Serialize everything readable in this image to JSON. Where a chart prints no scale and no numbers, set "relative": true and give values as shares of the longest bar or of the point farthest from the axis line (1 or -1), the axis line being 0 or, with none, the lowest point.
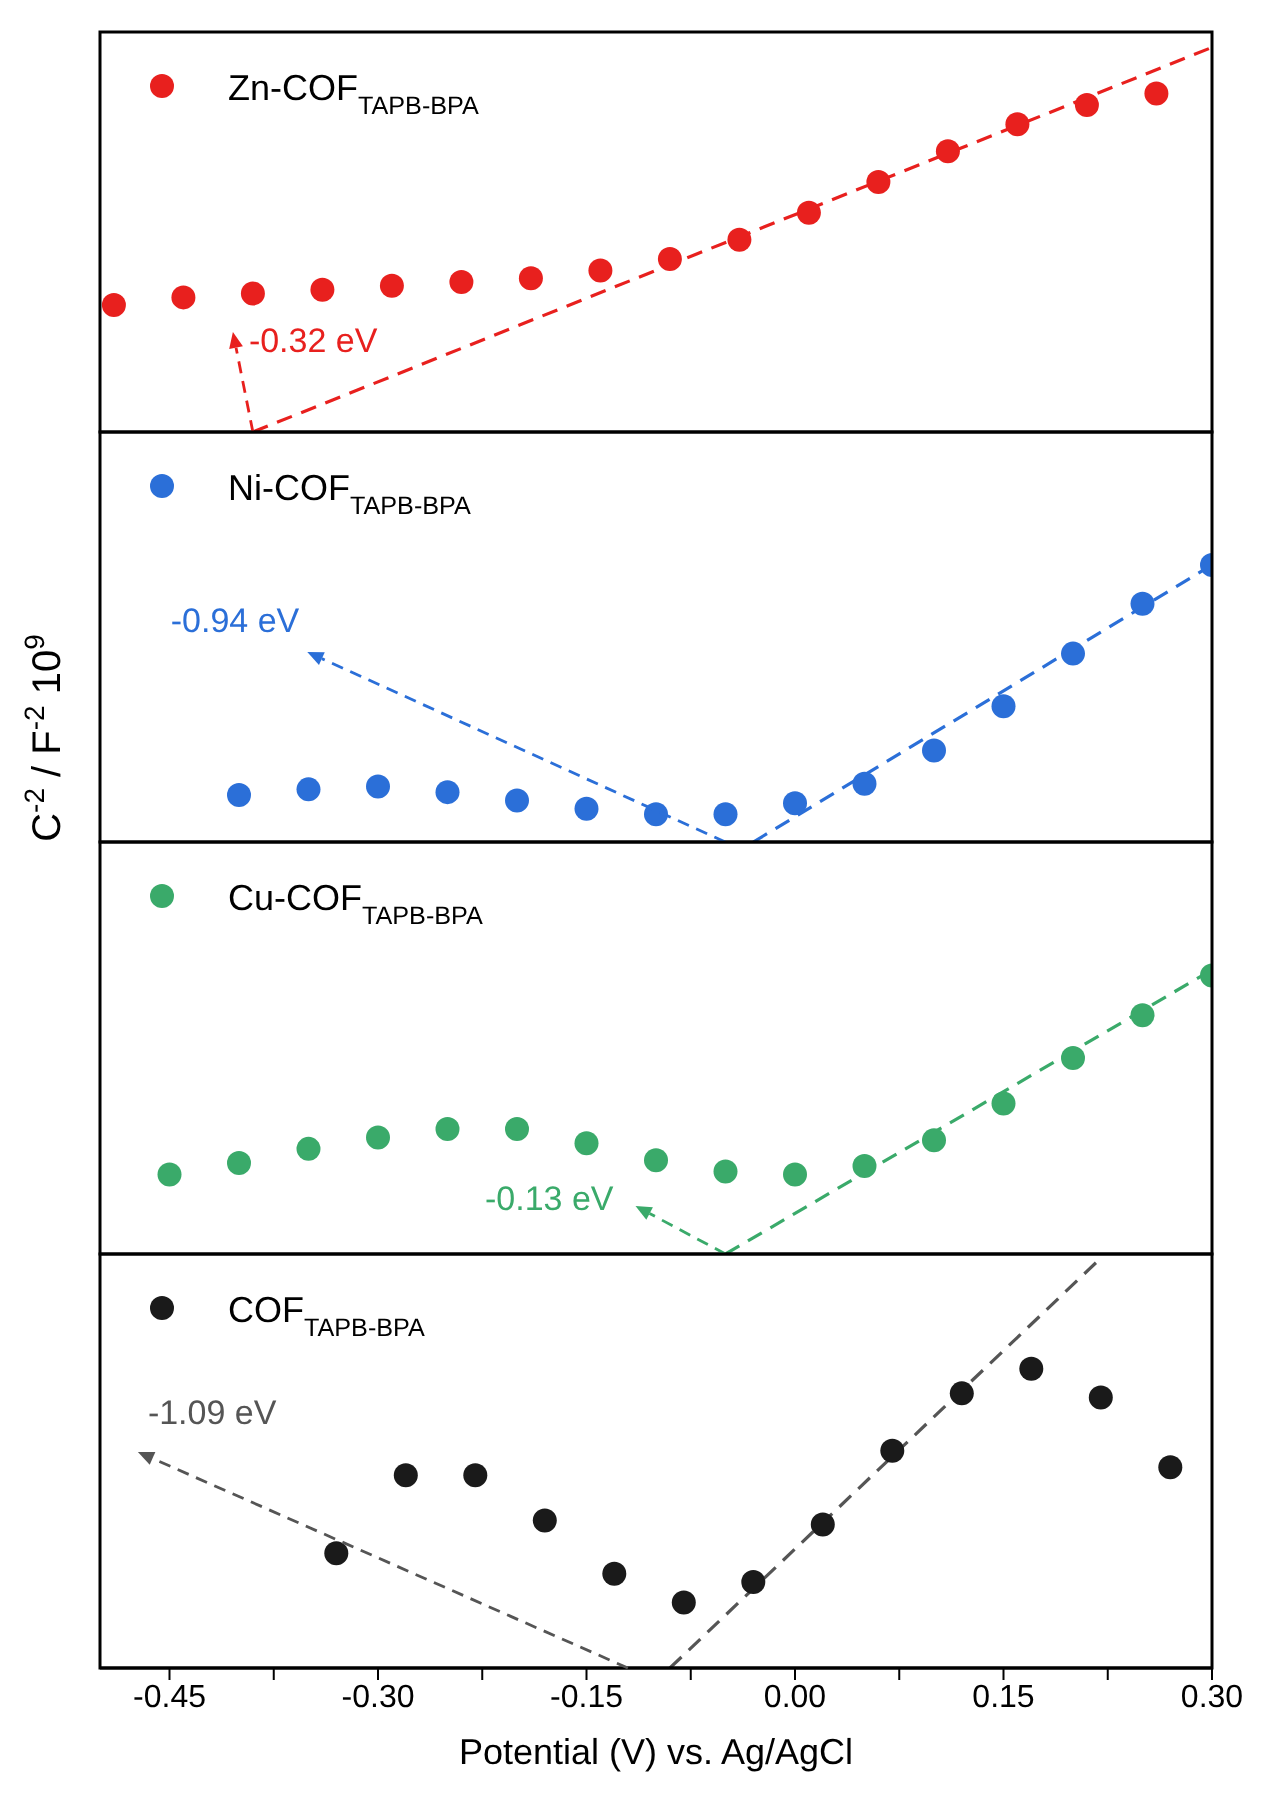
{
  "chart_data": [
    {
      "type": "scatter",
      "relative": true,
      "xlim": [
        -0.5,
        0.3
      ],
      "tick_labels": false,
      "legend": "top left",
      "marker": "circle",
      "annotations": [
        {
          "text": "-0.32 eV",
          "x": -0.39,
          "y": 0
        }
      ],
      "series": [
        {
          "name": "Zn-COF$_{TAPB-BPA}$",
          "color": "#e8201e",
          "x": [
            -0.49,
            -0.44,
            -0.39,
            -0.34,
            -0.29,
            -0.24,
            -0.19,
            -0.14,
            -0.09,
            -0.04,
            0.01,
            0.06,
            0.11,
            0.16,
            0.21,
            0.26
          ],
          "values": [
            0.33,
            0.35,
            0.36,
            0.37,
            0.38,
            0.39,
            0.4,
            0.42,
            0.45,
            0.5,
            0.57,
            0.65,
            0.73,
            0.8,
            0.85,
            0.88
          ]
        },
        {
          "type": "line",
          "marker": "none",
          "color": "#e8201e",
          "line_style": "dashed",
          "x": [
            -0.39,
            0.3
          ],
          "values": [
            0,
            1
          ]
        }
      ]
    },
    {
      "type": "scatter",
      "relative": true,
      "xlim": [
        -0.5,
        0.3
      ],
      "tick_labels": false,
      "legend": "top left",
      "marker": "circle",
      "ylabel": "C$^{-2}$ / F$^{-2}$ 10$^{9}$",
      "annotations": [
        "-0.94 eV"
      ],
      "series": [
        {
          "name": "Ni-COF$_{TAPB-BPA}$",
          "color": "#2b6fd8",
          "x": [
            -0.4,
            -0.35,
            -0.3,
            -0.25,
            -0.2,
            -0.15,
            -0.1,
            -0.05,
            0,
            0.05,
            0.1,
            0.15,
            0.2,
            0.25,
            0.3
          ],
          "values": [
            0.17,
            0.19,
            0.2,
            0.18,
            0.15,
            0.12,
            0.1,
            0.1,
            0.14,
            0.21,
            0.33,
            0.49,
            0.68,
            0.86,
            1
          ]
        },
        {
          "type": "line",
          "marker": "none",
          "color": "#2b6fd8",
          "line_style": "dashed",
          "x": [
            -0.03,
            0.3
          ],
          "values": [
            0,
            1
          ]
        }
      ]
    },
    {
      "type": "scatter",
      "relative": true,
      "xlim": [
        -0.5,
        0.3
      ],
      "tick_labels": false,
      "legend": "top left",
      "marker": "circle",
      "annotations": [
        {
          "text": "-0.13 eV",
          "x": -0.05,
          "y": 0
        }
      ],
      "series": [
        {
          "name": "Cu-COF$_{TAPB-BPA}$",
          "color": "#3aaa6a",
          "x": [
            -0.45,
            -0.4,
            -0.35,
            -0.3,
            -0.25,
            -0.2,
            -0.15,
            -0.1,
            -0.05,
            0,
            0.05,
            0.1,
            0.15,
            0.2,
            0.25,
            0.3
          ],
          "values": [
            0.28,
            0.32,
            0.37,
            0.41,
            0.44,
            0.44,
            0.39,
            0.33,
            0.29,
            0.28,
            0.31,
            0.4,
            0.53,
            0.69,
            0.84,
            0.98
          ]
        },
        {
          "type": "line",
          "marker": "none",
          "color": "#3aaa6a",
          "line_style": "dashed",
          "x": [
            -0.05,
            0.3
          ],
          "values": [
            0,
            1
          ]
        }
      ]
    },
    {
      "type": "scatter",
      "relative": true,
      "xlim": [
        -0.5,
        0.3
      ],
      "legend": "top left",
      "marker": "circle",
      "xlabel": "Potential (V) vs. Ag/AgCl",
      "xticks": [
        -0.45,
        {
          "value": -0.375,
          "label": null
        },
        {
          "value": -0.3,
          "label": "-0.30"
        },
        {
          "value": -0.225,
          "label": null
        },
        -0.15,
        {
          "value": -0.075,
          "label": null
        },
        {
          "value": 0,
          "label": "0.00"
        },
        {
          "value": 0.075,
          "label": null
        },
        0.15,
        {
          "value": 0.225,
          "label": null
        },
        {
          "value": 0.3,
          "label": "0.30"
        }
      ],
      "annotations": [
        "-1.09 eV"
      ],
      "series": [
        {
          "name": "COF$_{TAPB-BPA}$",
          "color": "#1a1a1a",
          "x": [
            -0.33,
            -0.28,
            -0.23,
            -0.18,
            -0.13,
            -0.08,
            -0.03,
            0.02,
            0.07,
            0.12,
            0.17,
            0.22,
            0.27
          ],
          "values": [
            0.28,
            0.47,
            0.47,
            0.36,
            0.23,
            0.16,
            0.21,
            0.35,
            0.53,
            0.67,
            0.73,
            0.66,
            0.49
          ]
        },
        {
          "type": "line",
          "marker": "none",
          "color": "#555555",
          "line_style": "dashed",
          "x": [
            -0.09,
            0.22
          ],
          "values": [
            0,
            1
          ]
        }
      ]
    }
  ]
}
